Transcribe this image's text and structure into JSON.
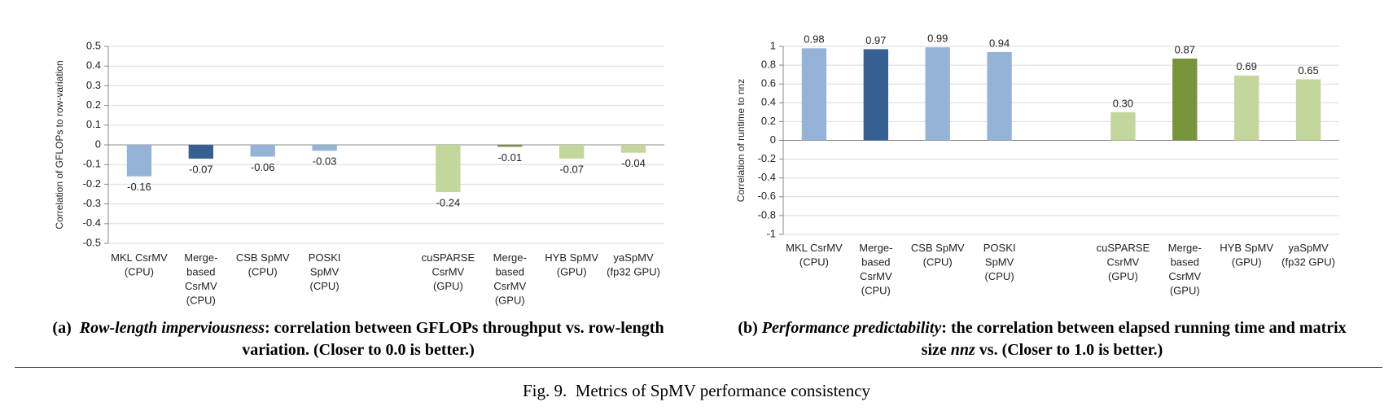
{
  "chart_data": [
    {
      "type": "bar",
      "y_label": "Correlation of GFLOPs  to row-variation",
      "categories": [
        "MKL CsrMV\n(CPU)",
        "Merge-\nbased\nCsrMV\n(CPU)",
        "CSB SpMV\n(CPU)",
        "POSKI\nSpMV\n(CPU)",
        null,
        "cuSPARSE\nCsrMV\n(GPU)",
        "Merge-\nbased\nCsrMV\n(GPU)",
        "HYB SpMV\n(GPU)",
        "yaSpMV\n(fp32 GPU)"
      ],
      "values": [
        -0.16,
        -0.07,
        -0.06,
        -0.03,
        null,
        -0.24,
        -0.01,
        -0.07,
        -0.04
      ],
      "value_labels": [
        "-0.16",
        "-0.07",
        "-0.06",
        "-0.03",
        null,
        "-0.24",
        "-0.01",
        "-0.07",
        "-0.04"
      ],
      "colors": [
        "#95b3d7",
        "#366092",
        "#95b3d7",
        "#95b3d7",
        null,
        "#c3d69b",
        "#77933c",
        "#c3d69b",
        "#c3d69b"
      ],
      "ylim": [
        -0.5,
        0.5
      ],
      "yticks": [
        -0.5,
        -0.4,
        -0.3,
        -0.2,
        -0.1,
        0,
        0.1,
        0.2,
        0.3,
        0.4,
        0.5
      ],
      "grid": true,
      "caption": {
        "label": "(a)",
        "title": "Row-length imperviousness",
        "text": ": correlation between GFLOPs throughput vs. row-length variation. (Closer to 0.0 is better.)"
      }
    },
    {
      "type": "bar",
      "y_label": "Correlation of runtime  to nnz",
      "categories": [
        "MKL CsrMV\n(CPU)",
        "Merge-\nbased\nCsrMV\n(CPU)",
        "CSB SpMV\n(CPU)",
        "POSKI\nSpMV\n(CPU)",
        null,
        "cuSPARSE\nCsrMV\n(GPU)",
        "Merge-\nbased\nCsrMV\n(GPU)",
        "HYB SpMV\n(GPU)",
        "yaSpMV\n(fp32 GPU)"
      ],
      "values": [
        0.98,
        0.97,
        0.99,
        0.94,
        null,
        0.3,
        0.87,
        0.69,
        0.65
      ],
      "value_labels": [
        "0.98",
        "0.97",
        "0.99",
        "0.94",
        null,
        "0.30",
        "0.87",
        "0.69",
        "0.65"
      ],
      "colors": [
        "#95b3d7",
        "#366092",
        "#95b3d7",
        "#95b3d7",
        null,
        "#c3d69b",
        "#77933c",
        "#c3d69b",
        "#c3d69b"
      ],
      "ylim": [
        -1,
        1
      ],
      "yticks": [
        -1,
        -0.8,
        -0.6,
        -0.4,
        -0.2,
        0,
        0.2,
        0.4,
        0.6,
        0.8,
        1
      ],
      "grid": true,
      "caption": {
        "label": "(b)",
        "title": "Performance predictability",
        "text": ": the correlation between elapsed running time and matrix size ",
        "emphasis": "nnz",
        "text_end": " vs. (Closer to 1.0 is better.)"
      }
    }
  ],
  "figure_caption": "Fig. 9.  Metrics of SpMV performance consistency"
}
